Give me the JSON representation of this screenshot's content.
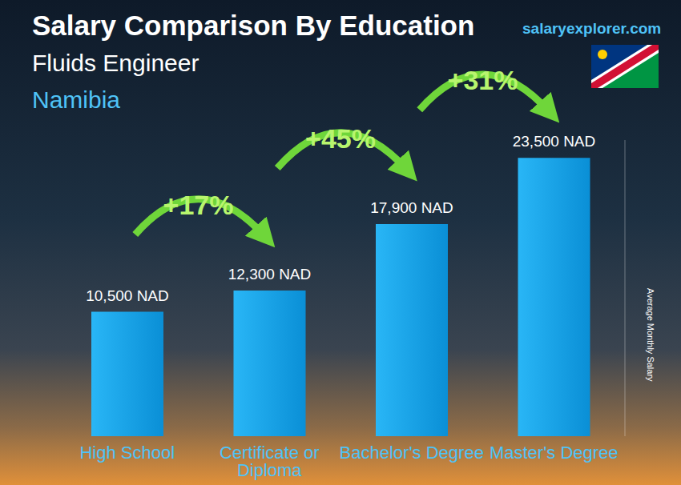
{
  "chart_data": {
    "type": "bar",
    "title": "Salary Comparison By Education",
    "subtitle": "Fluids Engineer",
    "location": "Namibia",
    "source": "salaryexplorer.com",
    "y_label": "Average Monthly Salary",
    "categories": [
      "High School",
      "Certificate or Diploma",
      "Bachelor's Degree",
      "Master's Degree"
    ],
    "values": [
      10500,
      12300,
      17900,
      23500
    ],
    "value_labels": [
      "10,500 NAD",
      "12,300 NAD",
      "17,900 NAD",
      "23,500 NAD"
    ],
    "data_labels": true,
    "annotations": [
      "+17%",
      "+45%",
      "+31%"
    ],
    "color": "#29b6f6",
    "ylim": [
      0,
      25000
    ],
    "tick_labels": "x",
    "grid": false
  }
}
